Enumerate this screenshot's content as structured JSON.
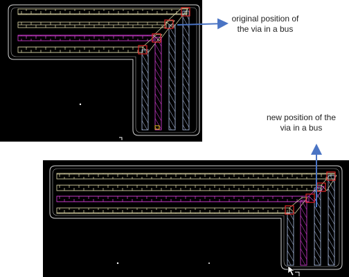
{
  "annotations": {
    "original_via": {
      "line1": "original position of",
      "line2": "the via in a bus"
    },
    "new_via": {
      "line1": "new position of the",
      "line2": "via in a bus"
    }
  },
  "colors": {
    "background": "#000000",
    "horizontal_wire": "#e8e2b0",
    "vertical_wire": "#b6c7ee",
    "highlight_wire": "#e040e0",
    "via": "#e02828",
    "boundary": "#d8d8d8",
    "arrow": "#4a74c4",
    "cursor": "#ffffff"
  },
  "icons": {
    "arrow": "arrow-right-icon",
    "arrow_up": "arrow-up-icon",
    "cursor": "mouse-pointer-icon"
  }
}
